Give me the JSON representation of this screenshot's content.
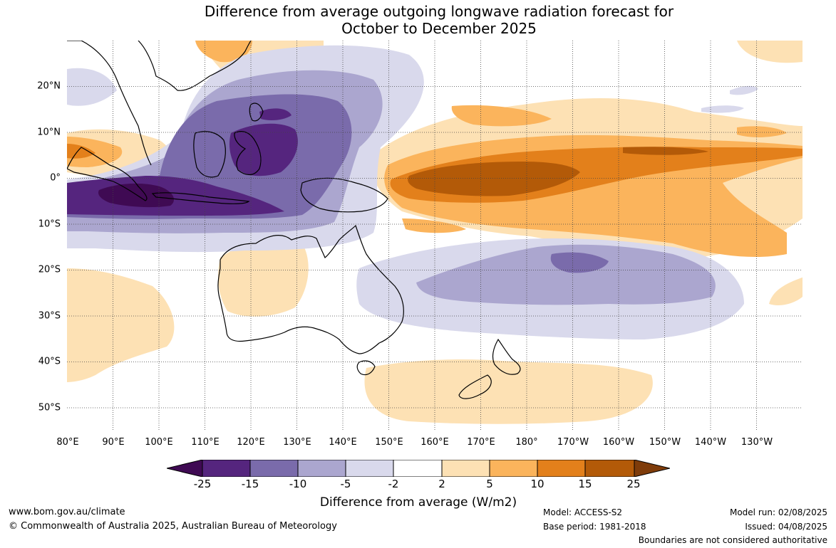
{
  "title_line1": "Difference from average outgoing longwave radiation forecast for",
  "title_line2": "October to December 2025",
  "latitude_labels": [
    "20°N",
    "10°N",
    "0°",
    "10°S",
    "20°S",
    "30°S",
    "40°S",
    "50°S"
  ],
  "longitude_labels": [
    "80°E",
    "90°E",
    "100°E",
    "110°E",
    "120°E",
    "130°E",
    "140°E",
    "150°E",
    "160°E",
    "170°E",
    "180°",
    "170°W",
    "160°W",
    "150°W",
    "140°W",
    "130°W"
  ],
  "colorbar": {
    "ticks": [
      "-25",
      "-15",
      "-10",
      "-5",
      "-2",
      "2",
      "5",
      "10",
      "15",
      "25"
    ],
    "colors": [
      "#3f0a53",
      "#55257e",
      "#7a6bab",
      "#aba6cf",
      "#d9d9ec",
      "#ffffff",
      "#fde1b4",
      "#fbb45c",
      "#e3801b",
      "#b35a08",
      "#7f3c0a"
    ],
    "label": "Difference from average (W/m2)"
  },
  "footer": {
    "website": "www.bom.gov.au/climate",
    "copyright": "© Commonwealth of Australia 2025, Australian Bureau of Meteorology",
    "model": "Model: ACCESS-S2",
    "base_period": "Base period: 1981-2018",
    "model_run": "Model run: 02/08/2025",
    "issued": "Issued: 04/08/2025",
    "disclaimer": "Boundaries are not considered authoritative"
  }
}
